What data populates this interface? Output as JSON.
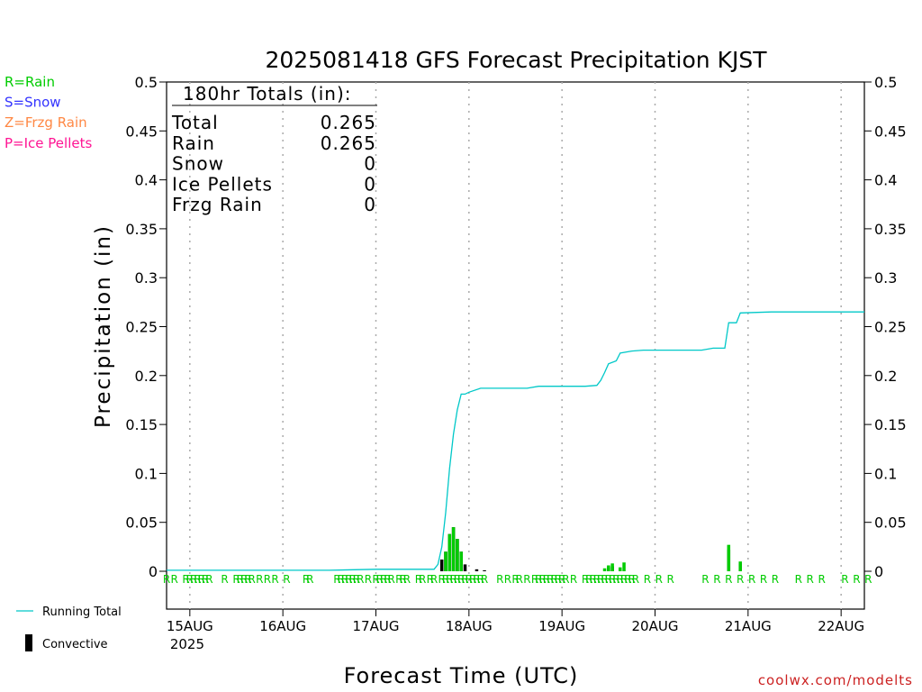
{
  "chart_data": {
    "type": "bar",
    "title": "2025081418 GFS Forecast Precipitation KJST",
    "xlabel": "Forecast Time (UTC)",
    "ylabel": "Precipitation (in)",
    "ylim": [
      0,
      0.5
    ],
    "y_ticks": [
      "0",
      "0.05",
      "0.1",
      "0.15",
      "0.2",
      "0.25",
      "0.3",
      "0.35",
      "0.4",
      "0.45",
      "0.5"
    ],
    "x_start": "2025-08-14T18Z",
    "x_end": "2025-08-22T06Z",
    "x_ticks": [
      {
        "t": "2025-08-15T00Z",
        "label": "15AUG",
        "sub": "2025"
      },
      {
        "t": "2025-08-16T00Z",
        "label": "16AUG"
      },
      {
        "t": "2025-08-17T00Z",
        "label": "17AUG"
      },
      {
        "t": "2025-08-18T00Z",
        "label": "18AUG"
      },
      {
        "t": "2025-08-19T00Z",
        "label": "19AUG"
      },
      {
        "t": "2025-08-20T00Z",
        "label": "20AUG"
      },
      {
        "t": "2025-08-21T00Z",
        "label": "21AUG"
      },
      {
        "t": "2025-08-22T00Z",
        "label": "22AUG"
      }
    ],
    "grid": "vertical dotted",
    "series": [
      {
        "name": "Running Total",
        "kind": "line",
        "color": "#00c8c8",
        "points": [
          [
            "2025-08-14T18Z",
            0.001
          ],
          [
            "2025-08-15T12Z",
            0.001
          ],
          [
            "2025-08-16T12Z",
            0.001
          ],
          [
            "2025-08-17T00Z",
            0.002
          ],
          [
            "2025-08-17T15Z",
            0.002
          ],
          [
            "2025-08-17T16Z",
            0.007
          ],
          [
            "2025-08-17T17Z",
            0.025
          ],
          [
            "2025-08-17T18Z",
            0.06
          ],
          [
            "2025-08-17T19Z",
            0.105
          ],
          [
            "2025-08-17T20Z",
            0.14
          ],
          [
            "2025-08-17T21Z",
            0.165
          ],
          [
            "2025-08-17T22Z",
            0.181
          ],
          [
            "2025-08-17T23Z",
            0.181
          ],
          [
            "2025-08-18T00Z",
            0.183
          ],
          [
            "2025-08-18T03Z",
            0.187
          ],
          [
            "2025-08-18T15Z",
            0.187
          ],
          [
            "2025-08-18T18Z",
            0.189
          ],
          [
            "2025-08-19T06Z",
            0.189
          ],
          [
            "2025-08-19T09Z",
            0.19
          ],
          [
            "2025-08-19T10Z",
            0.195
          ],
          [
            "2025-08-19T11Z",
            0.203
          ],
          [
            "2025-08-19T12Z",
            0.212
          ],
          [
            "2025-08-19T14Z",
            0.215
          ],
          [
            "2025-08-19T15Z",
            0.223
          ],
          [
            "2025-08-19T18Z",
            0.225
          ],
          [
            "2025-08-19T21Z",
            0.226
          ],
          [
            "2025-08-20T12Z",
            0.226
          ],
          [
            "2025-08-20T15Z",
            0.228
          ],
          [
            "2025-08-20T18Z",
            0.228
          ],
          [
            "2025-08-20T19Z",
            0.254
          ],
          [
            "2025-08-20T21Z",
            0.254
          ],
          [
            "2025-08-20T22Z",
            0.264
          ],
          [
            "2025-08-21T06Z",
            0.265
          ],
          [
            "2025-08-22T06Z",
            0.265
          ]
        ]
      },
      {
        "name": "Convective",
        "kind": "bar",
        "color": "#000000",
        "points": [
          [
            "2025-08-17T17Z",
            0.012
          ],
          [
            "2025-08-17T18Z",
            0.02
          ],
          [
            "2025-08-17T19Z",
            0.038
          ],
          [
            "2025-08-17T20Z",
            0.045
          ],
          [
            "2025-08-17T21Z",
            0.033
          ],
          [
            "2025-08-17T22Z",
            0.02
          ],
          [
            "2025-08-17T23Z",
            0.007
          ],
          [
            "2025-08-18T02Z",
            0.002
          ],
          [
            "2025-08-18T04Z",
            0.001
          ],
          [
            "2025-08-19T12Z",
            0.004
          ],
          [
            "2025-08-19T13Z",
            0.005
          ],
          [
            "2025-08-19T15Z",
            0.001
          ],
          [
            "2025-08-20T19Z",
            0.022
          ],
          [
            "2025-08-20T22Z",
            0.008
          ]
        ]
      },
      {
        "name": "Rain",
        "kind": "bar",
        "color": "#00cc00",
        "points": [
          [
            "2025-08-17T18Z",
            0.02
          ],
          [
            "2025-08-17T19Z",
            0.038
          ],
          [
            "2025-08-17T20Z",
            0.045
          ],
          [
            "2025-08-17T21Z",
            0.033
          ],
          [
            "2025-08-17T22Z",
            0.02
          ],
          [
            "2025-08-19T11Z",
            0.003
          ],
          [
            "2025-08-19T12Z",
            0.006
          ],
          [
            "2025-08-19T13Z",
            0.008
          ],
          [
            "2025-08-19T15Z",
            0.004
          ],
          [
            "2025-08-19T16Z",
            0.009
          ],
          [
            "2025-08-20T19Z",
            0.027
          ],
          [
            "2025-08-20T22Z",
            0.01
          ]
        ]
      }
    ],
    "ptype_markers": {
      "symbol": "R",
      "times": [
        "2025-08-14T18Z",
        "2025-08-14T20Z",
        "2025-08-14T23Z",
        "2025-08-15T00Z",
        "2025-08-15T01Z",
        "2025-08-15T02Z",
        "2025-08-15T03Z",
        "2025-08-15T04Z",
        "2025-08-15T05Z",
        "2025-08-15T09Z",
        "2025-08-15T12Z",
        "2025-08-15T13Z",
        "2025-08-15T14Z",
        "2025-08-15T15Z",
        "2025-08-15T16Z",
        "2025-08-15T18Z",
        "2025-08-15T20Z",
        "2025-08-15T22Z",
        "2025-08-16T01Z",
        "2025-08-16T06Z",
        "2025-08-16T07Z",
        "2025-08-16T14Z",
        "2025-08-16T15Z",
        "2025-08-16T16Z",
        "2025-08-16T17Z",
        "2025-08-16T18Z",
        "2025-08-16T19Z",
        "2025-08-16T20Z",
        "2025-08-16T22Z",
        "2025-08-17T00Z",
        "2025-08-17T01Z",
        "2025-08-17T02Z",
        "2025-08-17T03Z",
        "2025-08-17T04Z",
        "2025-08-17T06Z",
        "2025-08-17T07Z",
        "2025-08-17T08Z",
        "2025-08-17T11Z",
        "2025-08-17T12Z",
        "2025-08-17T14Z",
        "2025-08-17T15Z",
        "2025-08-17T17Z",
        "2025-08-17T18Z",
        "2025-08-17T19Z",
        "2025-08-17T20Z",
        "2025-08-17T21Z",
        "2025-08-17T22Z",
        "2025-08-17T23Z",
        "2025-08-18T00Z",
        "2025-08-18T01Z",
        "2025-08-18T02Z",
        "2025-08-18T03Z",
        "2025-08-18T04Z",
        "2025-08-18T08Z",
        "2025-08-18T10Z",
        "2025-08-18T12Z",
        "2025-08-18T13Z",
        "2025-08-18T15Z",
        "2025-08-18T17Z",
        "2025-08-18T18Z",
        "2025-08-18T19Z",
        "2025-08-18T20Z",
        "2025-08-18T21Z",
        "2025-08-18T22Z",
        "2025-08-18T23Z",
        "2025-08-19T00Z",
        "2025-08-19T01Z",
        "2025-08-19T03Z",
        "2025-08-19T06Z",
        "2025-08-19T07Z",
        "2025-08-19T08Z",
        "2025-08-19T09Z",
        "2025-08-19T10Z",
        "2025-08-19T11Z",
        "2025-08-19T12Z",
        "2025-08-19T13Z",
        "2025-08-19T14Z",
        "2025-08-19T15Z",
        "2025-08-19T16Z",
        "2025-08-19T17Z",
        "2025-08-19T18Z",
        "2025-08-19T19Z",
        "2025-08-19T22Z",
        "2025-08-20T01Z",
        "2025-08-20T04Z",
        "2025-08-20T13Z",
        "2025-08-20T16Z",
        "2025-08-20T19Z",
        "2025-08-20T22Z",
        "2025-08-21T01Z",
        "2025-08-21T04Z",
        "2025-08-21T07Z",
        "2025-08-21T13Z",
        "2025-08-21T16Z",
        "2025-08-21T19Z",
        "2025-08-22T01Z",
        "2025-08-22T04Z",
        "2025-08-22T07Z"
      ]
    }
  },
  "ptype_legend": [
    {
      "text": "R=Rain",
      "color": "#00cc00"
    },
    {
      "text": "S=Snow",
      "color": "#3333ff"
    },
    {
      "text": "Z=Frzg Rain",
      "color": "#ff8844"
    },
    {
      "text": "P=Ice Pellets",
      "color": "#ff1493"
    }
  ],
  "totals_box": {
    "heading": "180hr Totals (in):",
    "rows": [
      {
        "label": "Total",
        "value": "0.265"
      },
      {
        "label": "Rain",
        "value": "0.265"
      },
      {
        "label": "Snow",
        "value": "0"
      },
      {
        "label": "Ice Pellets",
        "value": "0"
      },
      {
        "label": "Frzg Rain",
        "value": "0"
      }
    ]
  },
  "bottom_legend": {
    "running_total": "Running Total",
    "convective": "Convective"
  },
  "credit": "coolwx.com/modelts"
}
